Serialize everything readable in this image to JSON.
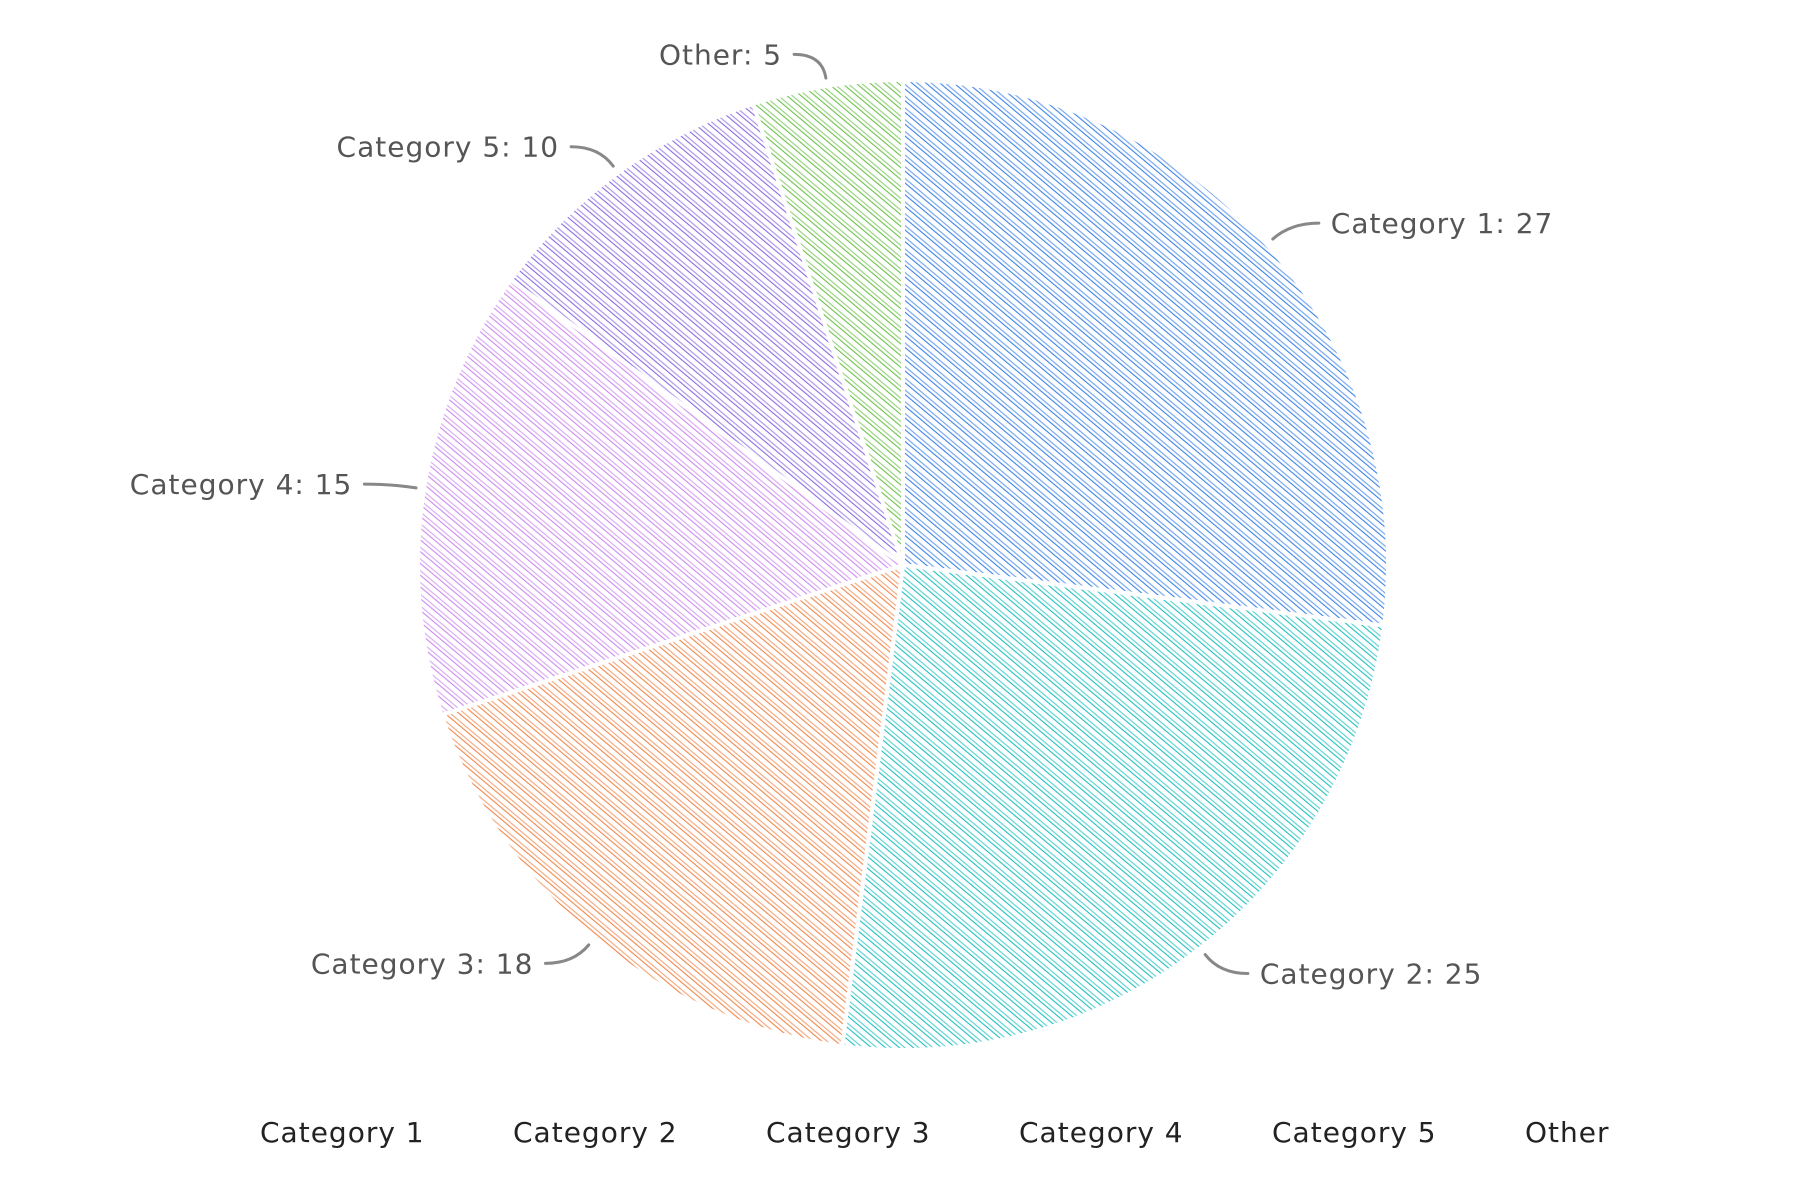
{
  "chart_data": {
    "type": "pie",
    "style": "hand-drawn hachure fill",
    "categories": [
      "Category 1",
      "Category 2",
      "Category 3",
      "Category 4",
      "Category 5",
      "Other"
    ],
    "values": [
      27,
      25,
      18,
      15,
      10,
      5
    ],
    "colors": [
      "#3b82e8",
      "#1fbfbf",
      "#f0864a",
      "#cc88ee",
      "#8a6ae0",
      "#6cc04a"
    ],
    "slice_labels": [
      "Category 1: 27",
      "Category 2: 25",
      "Category 3: 18",
      "Category 4: 15",
      "Category 5: 10",
      "Other: 5"
    ],
    "legend": {
      "placement": "bottom",
      "items": [
        "Category 1",
        "Category 2",
        "Category 3",
        "Category 4",
        "Category 5",
        "Other"
      ]
    },
    "start": "12 o'clock",
    "direction": "clockwise"
  }
}
